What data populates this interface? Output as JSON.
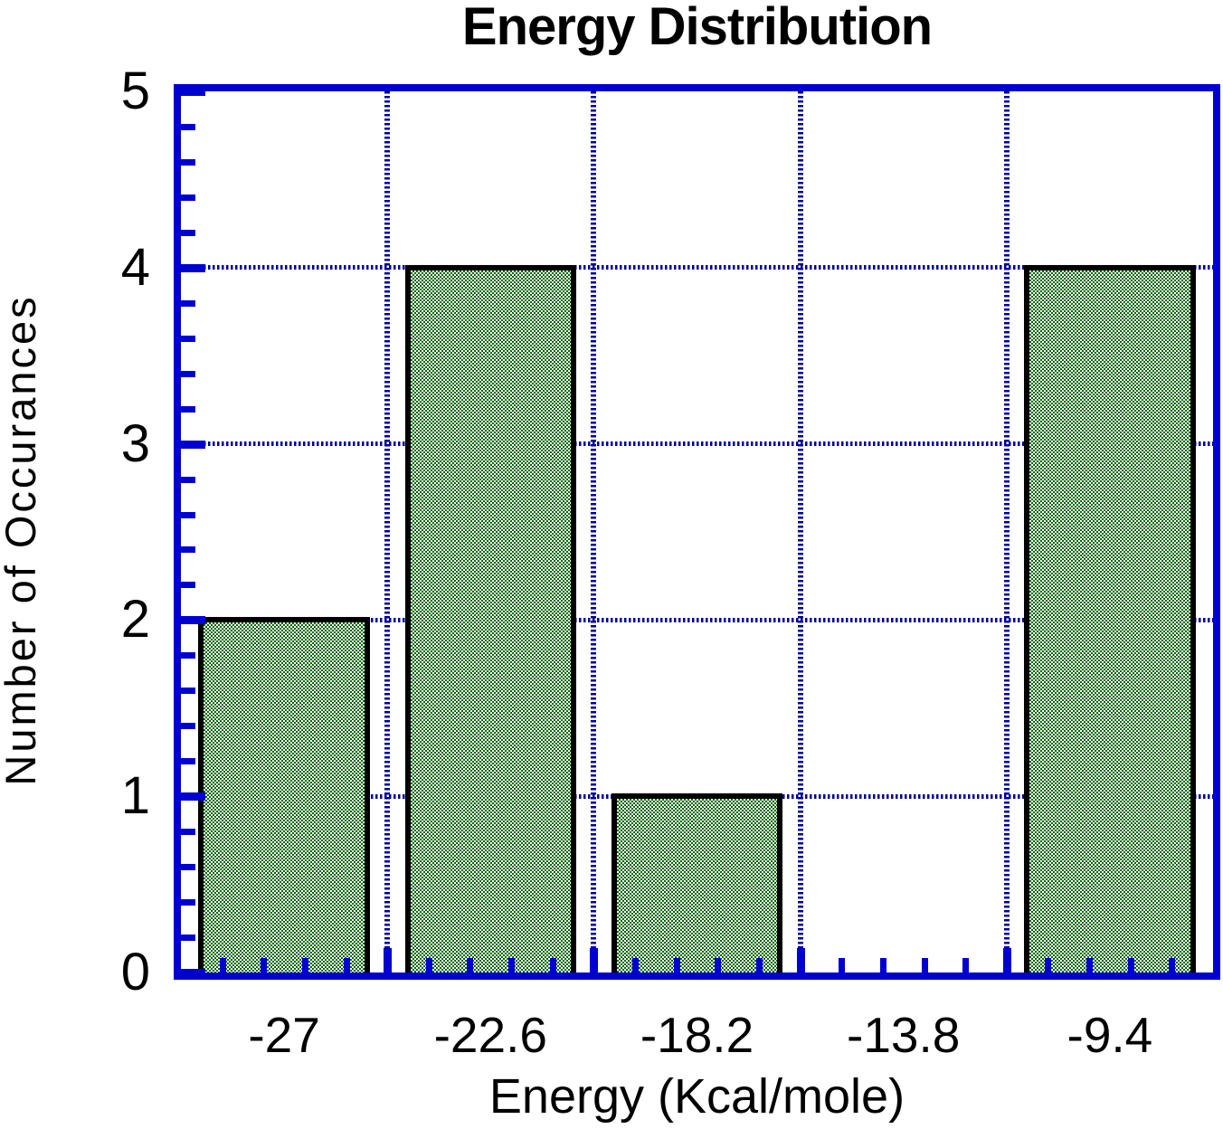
{
  "chart_data": {
    "type": "bar",
    "title": "Energy Distribution",
    "xlabel": "Energy (Kcal/mole)",
    "ylabel": "Number of Occurances",
    "categories": [
      "-27",
      "-22.6",
      "-18.2",
      "-13.8",
      "-9.4"
    ],
    "values": [
      2,
      4,
      1,
      0,
      4
    ],
    "ylim": [
      0,
      5
    ],
    "yticks": [
      "0",
      "1",
      "2",
      "3",
      "4",
      "5"
    ],
    "minor_divisions_per_major": 5,
    "grid": true,
    "legend_position": "none",
    "colors": {
      "frame": "#0000d0",
      "grid": "#000099",
      "bar_fill": "#006600",
      "bar_fill_alt": "#ffffff",
      "bar_border": "#000000",
      "text": "#000000",
      "background": "#ffffff"
    }
  }
}
